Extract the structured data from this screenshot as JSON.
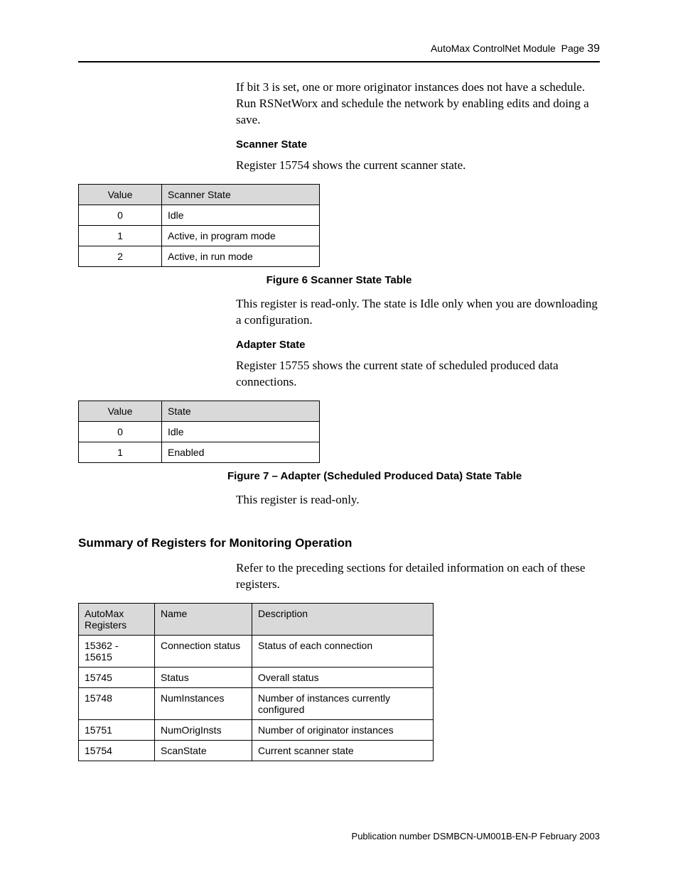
{
  "header": {
    "doc_title": "AutoMax ControlNet Module",
    "page_label": "Page",
    "page_number": "39"
  },
  "intro_para": "If bit 3 is set, one or more originator instances does not have a schedule. Run RSNetWorx and schedule the network by enabling edits and doing a save.",
  "scanner": {
    "heading": "Scanner State",
    "para": "Register 15754 shows the current scanner state.",
    "table": {
      "header_value": "Value",
      "header_state": "Scanner State",
      "rows": [
        {
          "value": "0",
          "state": "Idle"
        },
        {
          "value": "1",
          "state": "Active, in program mode"
        },
        {
          "value": "2",
          "state": "Active, in run mode"
        }
      ]
    },
    "caption": "Figure 6 Scanner State Table",
    "note": "This register is read-only.  The state is Idle only when you are downloading a configuration."
  },
  "adapter": {
    "heading": "Adapter State",
    "para": "Register 15755 shows the current state of scheduled produced data connections.",
    "table": {
      "header_value": "Value",
      "header_state": "State",
      "rows": [
        {
          "value": "0",
          "state": "Idle"
        },
        {
          "value": "1",
          "state": "Enabled"
        }
      ]
    },
    "caption": "Figure 7 – Adapter (Scheduled Produced Data) State Table",
    "note": "This register is read-only."
  },
  "summary": {
    "heading": "Summary of Registers for Monitoring Operation",
    "para": "Refer to the preceding sections for detailed information on each of these registers.",
    "table": {
      "h1": "AutoMax Registers",
      "h2": "Name",
      "h3": "Description",
      "rows": [
        {
          "reg": "15362 - 15615",
          "name": "Connection status",
          "desc": "Status of each connection"
        },
        {
          "reg": "15745",
          "name": "Status",
          "desc": "Overall status"
        },
        {
          "reg": "15748",
          "name": "NumInstances",
          "desc": "Number of instances currently configured"
        },
        {
          "reg": "15751",
          "name": "NumOrigInsts",
          "desc": "Number of originator instances"
        },
        {
          "reg": "15754",
          "name": "ScanState",
          "desc": "Current scanner state"
        }
      ]
    }
  },
  "footer": {
    "text": "Publication number DSMBCN-UM001B-EN-P February 2003"
  }
}
